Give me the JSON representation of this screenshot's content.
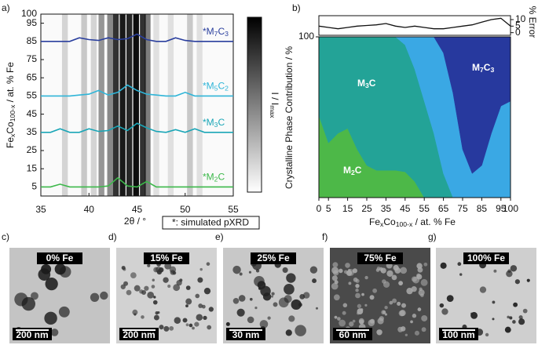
{
  "chart_data": [
    {
      "type": "line",
      "panel_label": "a)",
      "xlabel": "2θ / °",
      "ylabel": [
        "Fe",
        "x",
        "Co",
        "100-x",
        " / at. % Fe"
      ],
      "colorbar_label": [
        "I / I",
        "max"
      ],
      "note": "*: simulated pXRD",
      "xlim": [
        35,
        55
      ],
      "xticks": [
        35,
        40,
        45,
        50,
        55
      ],
      "ylim": [
        0,
        100
      ],
      "yticks": [
        5,
        15,
        25,
        35,
        45,
        55,
        65,
        75,
        85,
        95,
        100
      ],
      "x": [
        35,
        36,
        37,
        38,
        39,
        40,
        41,
        42,
        43,
        44,
        45,
        46,
        47,
        48,
        49,
        50,
        51,
        52,
        53,
        54,
        55
      ],
      "series": [
        {
          "name": [
            "*M",
            "7",
            "C",
            "3"
          ],
          "color": "#2a3f9e",
          "values": [
            85,
            85,
            85,
            85,
            87,
            86,
            85.5,
            87,
            86,
            86.5,
            89,
            86,
            85,
            85,
            87,
            85.5,
            85,
            85,
            85,
            85,
            85
          ]
        },
        {
          "name": [
            "*M",
            "5",
            "C",
            "2"
          ],
          "color": "#2fb5d8",
          "values": [
            55,
            55,
            55,
            55,
            55.5,
            56,
            58,
            55.5,
            57,
            61,
            58,
            56,
            55.5,
            55,
            55,
            57,
            55,
            55,
            55,
            55,
            55
          ]
        },
        {
          "name": [
            "*M",
            "3",
            "C"
          ],
          "color": "#1aa6b7",
          "values": [
            35,
            35,
            37,
            35,
            35,
            37,
            35.5,
            36,
            38.5,
            36,
            40,
            37.5,
            35.5,
            35,
            36.5,
            35,
            37,
            35,
            35,
            35,
            35
          ]
        },
        {
          "name": [
            "*M",
            "2",
            "C"
          ],
          "color": "#3cb84a",
          "values": [
            5,
            5,
            6.5,
            5,
            5,
            5,
            5,
            5.5,
            10,
            5.5,
            5,
            8,
            5,
            5,
            5,
            5,
            5,
            5,
            5,
            5,
            5
          ]
        }
      ],
      "heatmap": {
        "x": [
          37.5,
          39.5,
          40.5,
          41.3,
          42.2,
          42.8,
          43.5,
          44.2,
          44.9,
          45.6,
          46.1,
          47,
          48.5,
          50.5,
          51.5
        ],
        "values": [
          0.15,
          0.2,
          0.15,
          0.4,
          0.45,
          0.8,
          0.9,
          0.85,
          0.95,
          0.8,
          0.5,
          0.1,
          0.1,
          0.2,
          0.1
        ]
      }
    },
    {
      "type": "area",
      "panel_label": "b)",
      "ylabel": "Crystalline Phase Contribution / %",
      "xlabel": [
        "Fe",
        "x",
        "Co",
        "100-x",
        " / at. % Fe"
      ],
      "y2label": "% Error",
      "xlim": [
        0,
        100
      ],
      "xticks": [
        0,
        5,
        15,
        25,
        35,
        45,
        55,
        65,
        75,
        85,
        95,
        100
      ],
      "ylim": [
        0,
        100
      ],
      "yticks": [
        100
      ],
      "y2lim": [
        -2,
        13
      ],
      "y2ticks": [
        0,
        5,
        10
      ],
      "x": [
        0,
        5,
        10,
        15,
        20,
        25,
        30,
        35,
        40,
        45,
        50,
        55,
        60,
        65,
        70,
        75,
        80,
        85,
        90,
        95,
        100
      ],
      "series": [
        {
          "name": [
            "M",
            "2",
            "C"
          ],
          "color": "#4db848",
          "values": [
            51,
            34,
            40,
            43,
            30,
            20,
            17,
            17,
            17,
            16,
            10,
            0,
            0,
            0,
            0,
            0,
            0,
            0,
            0,
            0,
            0
          ]
        },
        {
          "name": [
            "M",
            "3",
            "C"
          ],
          "color": "#23a397",
          "values": [
            49,
            66,
            60,
            57,
            70,
            80,
            83,
            83,
            83,
            79,
            70,
            60,
            40,
            15,
            0,
            0,
            0,
            0,
            0,
            0,
            0
          ]
        },
        {
          "name": [
            "M",
            "5",
            "C",
            "2"
          ],
          "color": "#3aa8e4",
          "values": [
            0,
            0,
            0,
            0,
            0,
            0,
            0,
            0,
            0,
            5,
            20,
            40,
            60,
            75,
            65,
            30,
            15,
            20,
            40,
            57,
            60
          ]
        },
        {
          "name": [
            "M",
            "7",
            "C",
            "3"
          ],
          "color": "#27399e",
          "values": [
            0,
            0,
            0,
            0,
            0,
            0,
            0,
            0,
            0,
            0,
            0,
            0,
            0,
            10,
            35,
            70,
            85,
            80,
            60,
            43,
            40
          ]
        },
        {
          "axis": "y2",
          "color": "#111111",
          "values": [
            5,
            4,
            3,
            4,
            5,
            5.5,
            6,
            7,
            5,
            4,
            5,
            4,
            3,
            3,
            4,
            5,
            6,
            8,
            10,
            11,
            5
          ]
        }
      ]
    }
  ],
  "images": [
    {
      "label": "c)",
      "caption": "0% Fe",
      "scale": "200 nm"
    },
    {
      "label": "d)",
      "caption": "15% Fe",
      "scale": "200 nm"
    },
    {
      "label": "e)",
      "caption": "25% Fe",
      "scale": "30 nm"
    },
    {
      "label": "f)",
      "caption": "75% Fe",
      "scale": "60 nm"
    },
    {
      "label": "g)",
      "caption": "100% Fe",
      "scale": "100 nm"
    }
  ]
}
